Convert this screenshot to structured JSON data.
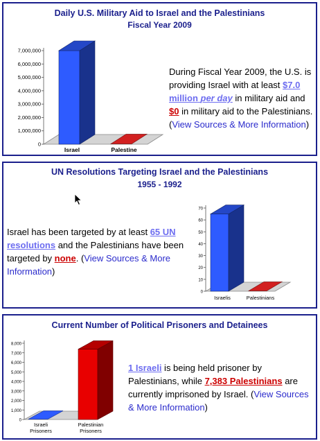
{
  "panels": [
    {
      "title": "Daily U.S. Military Aid to Israel and the Palestinians",
      "subtitle": "Fiscal Year 2009",
      "text": {
        "before": "During Fiscal Year 2009, the U.S. is providing Israel with at least ",
        "highlight1": "$7.0 million",
        "highlight1_em": "per day",
        "middle": " in military aid and ",
        "highlight2": "$0",
        "after": " in military aid to the Palestinians. (",
        "link": "View Sources & More Information",
        "end": ")"
      }
    },
    {
      "title": "UN Resolutions Targeting Israel and the Palestinians",
      "subtitle": "1955 - 1992",
      "text": {
        "before": "Israel has been targeted by at least ",
        "highlight1": "65 UN resolutions",
        "middle": " and the Palestinians have been targeted by ",
        "highlight2": "none",
        "after": ". (",
        "link": "View Sources & More Information",
        "end": ")"
      }
    },
    {
      "title": "Current Number of Political Prisoners and Detainees",
      "text": {
        "highlight1": "1 Israeli",
        "middle": " is being held prisoner by Palestinians, while ",
        "highlight2": "7,383 Palestinians",
        "after": " are currently imprisoned by Israel. (",
        "link": "View Sources & More Information",
        "end": ")"
      }
    }
  ],
  "chart_data": [
    {
      "type": "bar",
      "categories": [
        "Israel",
        "Palestine"
      ],
      "values": [
        7000000,
        0
      ],
      "ylim": [
        0,
        7000000
      ],
      "yticks": [
        "0",
        "1,000,000",
        "2,000,000",
        "3,000,000",
        "4,000,000",
        "5,000,000",
        "6,000,000",
        "7,000,000"
      ],
      "colors": [
        "#2e5bff",
        "#d22020"
      ],
      "three_d": true
    },
    {
      "type": "bar",
      "categories": [
        "Israelis",
        "Palestinians"
      ],
      "values": [
        65,
        0
      ],
      "ylim": [
        0,
        70
      ],
      "yticks": [
        "0",
        "10",
        "20",
        "30",
        "40",
        "50",
        "60",
        "70"
      ],
      "colors": [
        "#2e5bff",
        "#d22020"
      ],
      "three_d": true
    },
    {
      "type": "bar",
      "categories": [
        "Israeli Prisoners",
        "Palestinian Prisoners"
      ],
      "values": [
        1,
        7383
      ],
      "ylim": [
        0,
        8000
      ],
      "yticks": [
        "0",
        "1,000",
        "2,000",
        "3,000",
        "4,000",
        "5,000",
        "6,000",
        "7,000",
        "8,000"
      ],
      "colors": [
        "#2e5bff",
        "#e80000"
      ],
      "three_d": true
    }
  ]
}
